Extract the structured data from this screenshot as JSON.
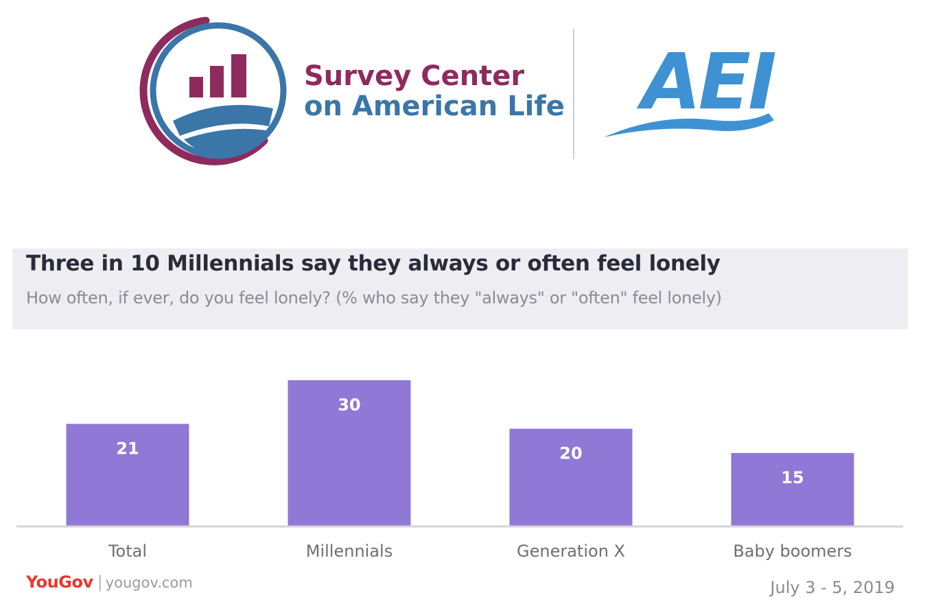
{
  "header": {
    "org_name_line1": "Survey Center",
    "org_name_line2": "on American Life",
    "partner_logo_text": "AEI",
    "colors": {
      "maroon": "#8e2a5e",
      "blue": "#3a76a8",
      "aei_blue": "#3e92d4"
    }
  },
  "chart_data": {
    "type": "bar",
    "title": "Three in 10 Millennials say they always or often feel lonely",
    "subtitle": "How often, if ever, do you feel lonely? (% who say they \"always\" or \"often\" feel lonely)",
    "categories": [
      "Total",
      "Millennials",
      "Generation X",
      "Baby boomers"
    ],
    "values": [
      21,
      30,
      20,
      15
    ],
    "bar_color": "#8f78d6",
    "ylim": [
      0,
      30
    ],
    "grid": false,
    "data_labels": true
  },
  "footer": {
    "brand": "YouGov",
    "url": "yougov.com",
    "date": "July 3 - 5, 2019"
  }
}
